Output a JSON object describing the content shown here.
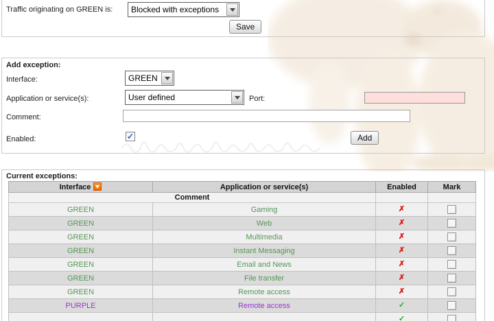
{
  "colors": {
    "interface_green": "#569456",
    "interface_purple": "#9933cc",
    "enabled_cross": "#dd1111",
    "enabled_check": "#1faf1f",
    "sort_icon_orange": "#ee6600",
    "port_field_bg": "#ffdede"
  },
  "traffic_section": {
    "label": "Traffic originating on GREEN is:",
    "dropdown_value": "Blocked with exceptions",
    "save_label": "Save"
  },
  "add_exception": {
    "title": "Add exception:",
    "interface_label": "Interface:",
    "interface_value": "GREEN",
    "application_label": "Application or service(s):",
    "application_value": "User defined",
    "port_label": "Port:",
    "port_value": "",
    "comment_label": "Comment:",
    "comment_value": "",
    "enabled_label": "Enabled:",
    "enabled_checked": true,
    "add_label": "Add"
  },
  "current_exceptions": {
    "title": "Current exceptions:",
    "columns": [
      "Interface",
      "Application or service(s)",
      "Enabled",
      "Mark"
    ],
    "subheader": "Comment",
    "rows": [
      {
        "interface": "GREEN",
        "application": "Gaming",
        "enabled": false
      },
      {
        "interface": "GREEN",
        "application": "Web",
        "enabled": false
      },
      {
        "interface": "GREEN",
        "application": "Multimedia",
        "enabled": false
      },
      {
        "interface": "GREEN",
        "application": "Instant Messaging",
        "enabled": false
      },
      {
        "interface": "GREEN",
        "application": "Email and News",
        "enabled": false
      },
      {
        "interface": "GREEN",
        "application": "File transfer",
        "enabled": false
      },
      {
        "interface": "GREEN",
        "application": "Remote access",
        "enabled": false
      },
      {
        "interface": "PURPLE",
        "application": "Remote access",
        "enabled": true
      },
      {
        "interface": "",
        "application": "",
        "enabled": true
      }
    ]
  }
}
